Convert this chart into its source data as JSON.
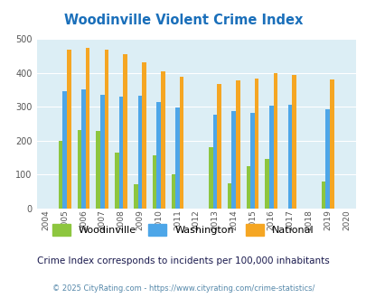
{
  "title": "Woodinville Violent Crime Index",
  "years": [
    2004,
    2005,
    2006,
    2007,
    2008,
    2009,
    2010,
    2011,
    2012,
    2013,
    2014,
    2015,
    2016,
    2017,
    2018,
    2019,
    2020
  ],
  "woodinville": [
    null,
    200,
    232,
    228,
    165,
    72,
    157,
    101,
    null,
    180,
    74,
    126,
    145,
    null,
    null,
    80,
    null
  ],
  "washington": [
    null,
    345,
    350,
    335,
    330,
    332,
    314,
    298,
    null,
    277,
    287,
    283,
    303,
    305,
    null,
    293,
    null
  ],
  "national": [
    null,
    469,
    473,
    467,
    455,
    431,
    405,
    388,
    null,
    367,
    377,
    384,
    398,
    394,
    null,
    379,
    null
  ],
  "woodinville_color": "#8dc63f",
  "washington_color": "#4da6e8",
  "national_color": "#f5a623",
  "bg_color": "#dceef5",
  "ylim": [
    0,
    500
  ],
  "yticks": [
    0,
    100,
    200,
    300,
    400,
    500
  ],
  "bar_width": 0.22,
  "subtitle": "Crime Index corresponds to incidents per 100,000 inhabitants",
  "footer": "© 2025 CityRating.com - https://www.cityrating.com/crime-statistics/",
  "title_color": "#1a6fba",
  "subtitle_color": "#1a1a4e",
  "footer_color": "#5588aa",
  "grid_color": "#ffffff",
  "legend_labels": [
    "Woodinville",
    "Washington",
    "National"
  ]
}
